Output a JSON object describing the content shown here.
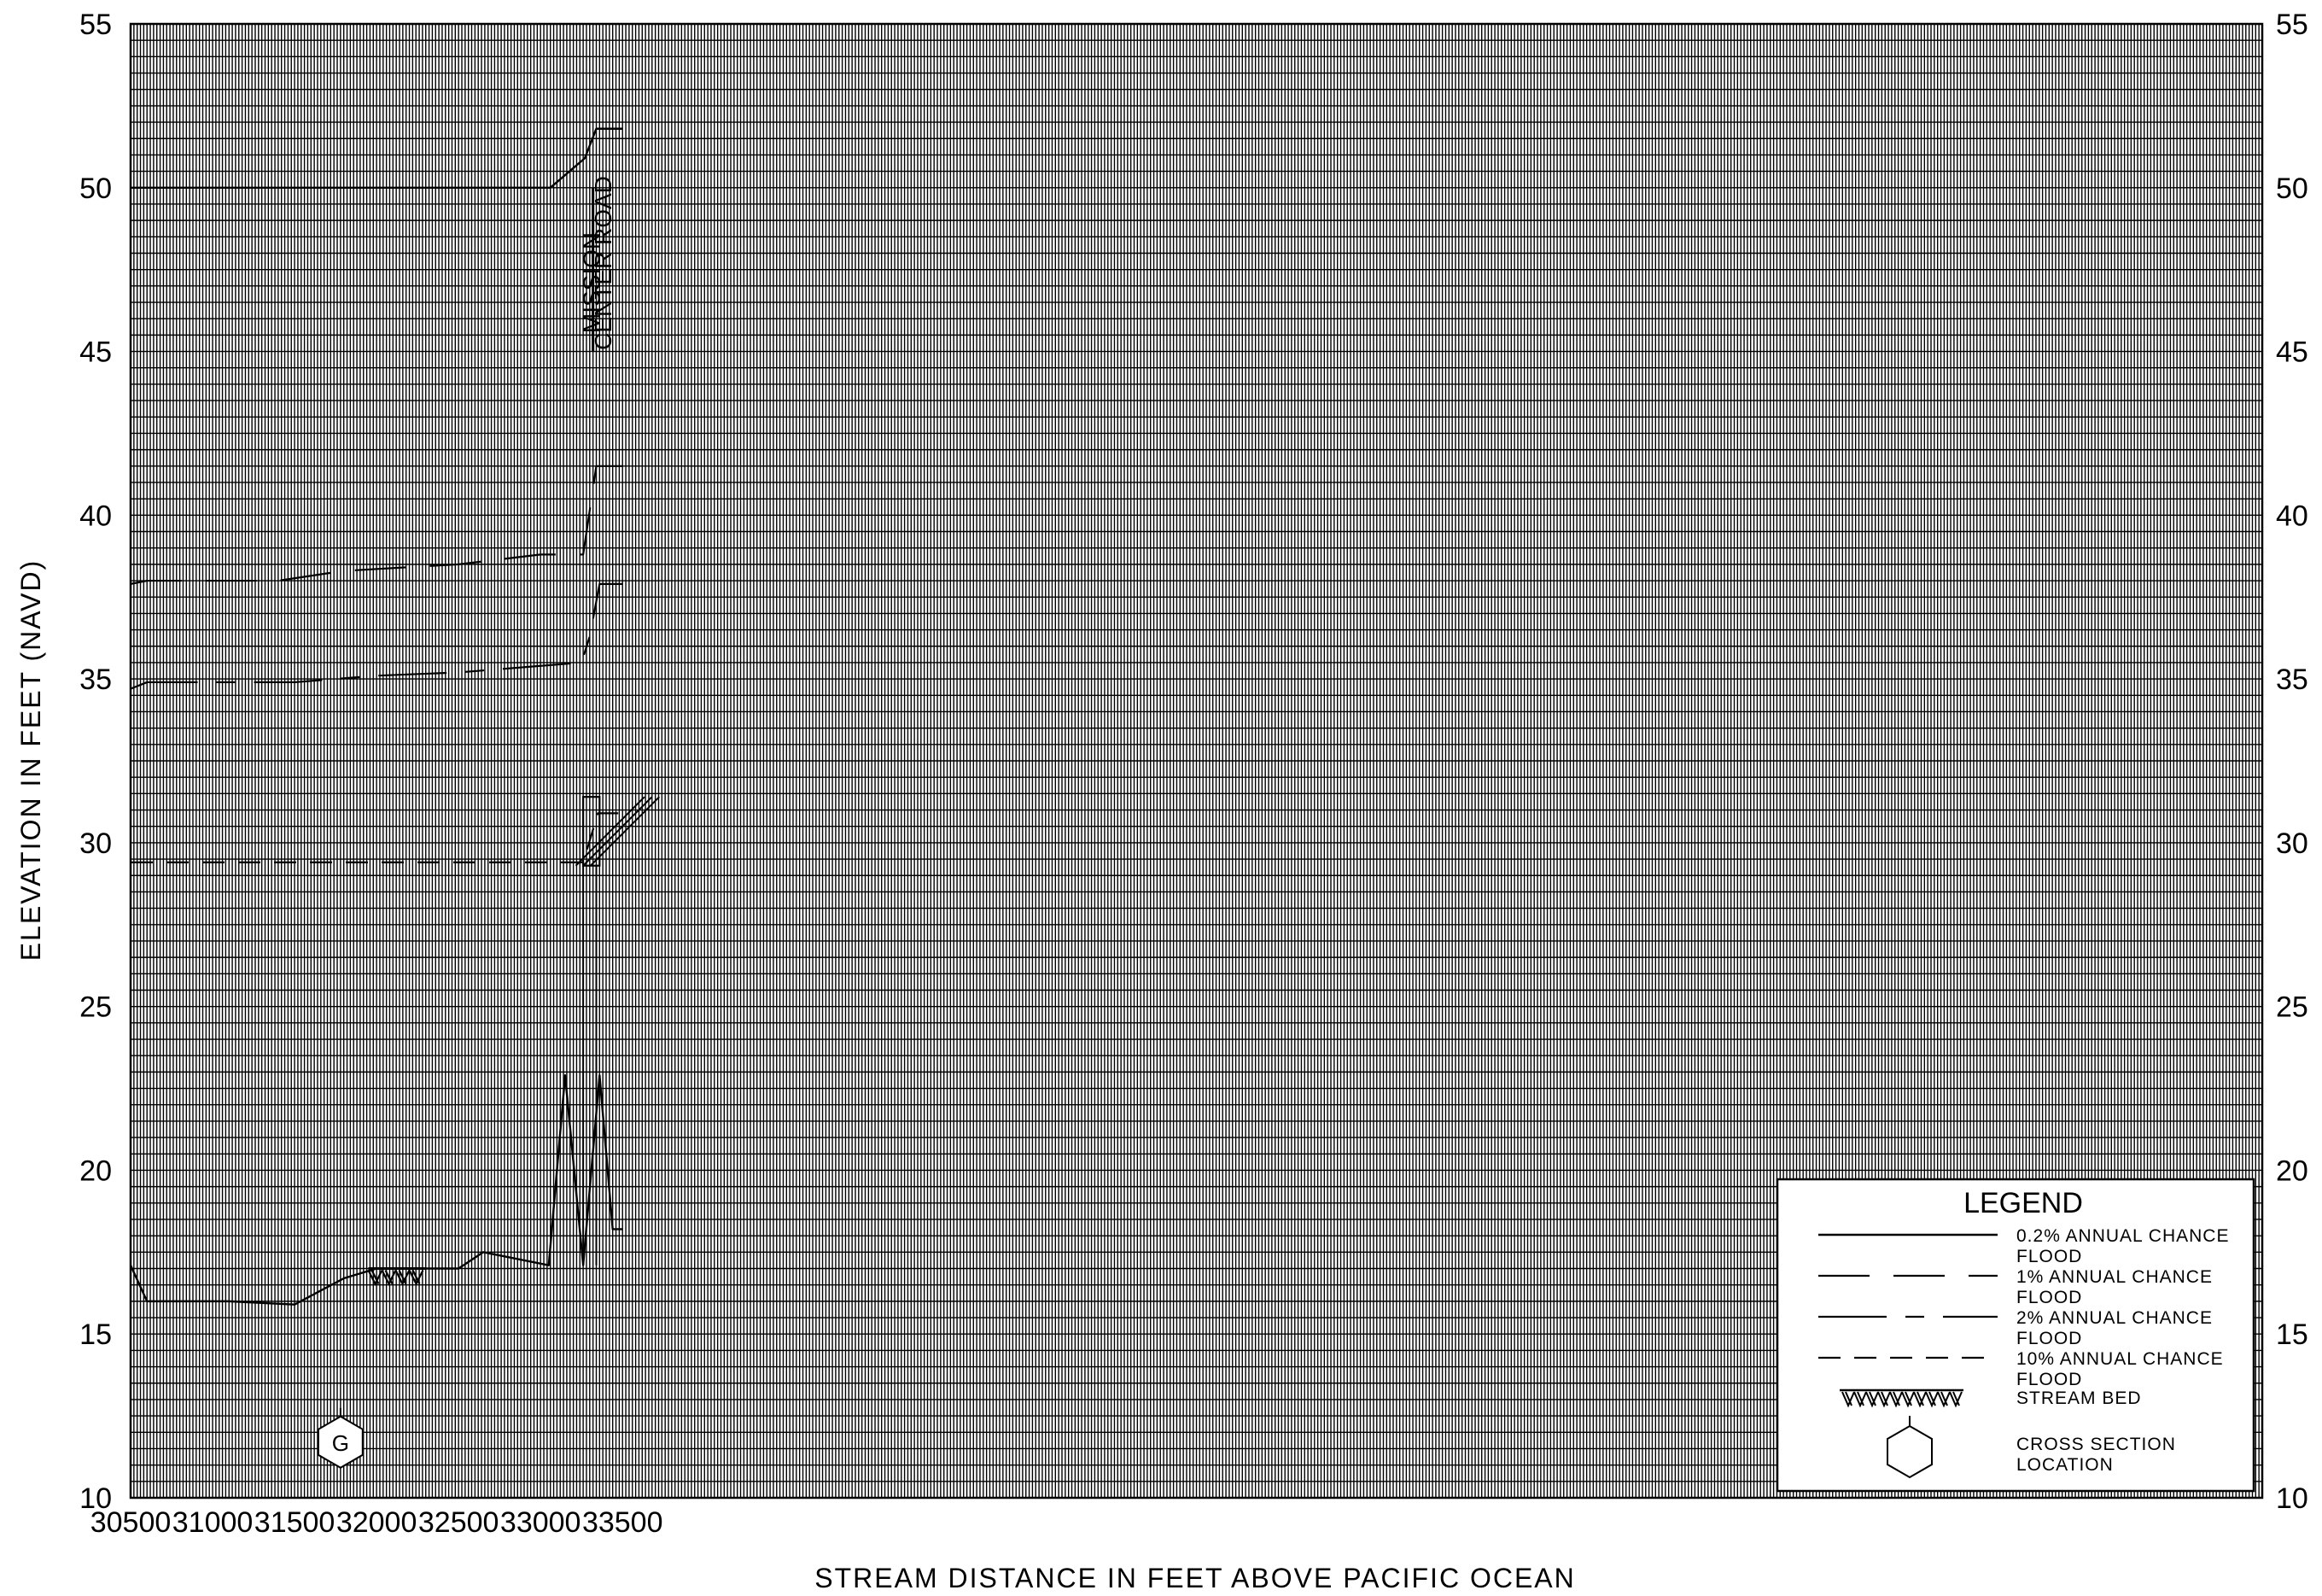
{
  "chart_data": {
    "type": "line",
    "xlabel": "STREAM DISTANCE IN FEET ABOVE PACIFIC OCEAN",
    "ylabel": "ELEVATION IN FEET (NAVD)",
    "xlim": [
      30500,
      43500
    ],
    "ylim": [
      10,
      55
    ],
    "x_ticks": [
      "30500",
      "31000",
      "31500",
      "32000",
      "32500",
      "33000",
      "33500"
    ],
    "y_ticks": [
      "10",
      "15",
      "20",
      "25",
      "30",
      "35",
      "40",
      "45",
      "50",
      "55"
    ],
    "grid": true,
    "legend": {
      "title": "LEGEND",
      "position": "bottom-right",
      "items": [
        {
          "label": [
            "0.2% ANNUAL CHANCE",
            "FLOOD"
          ],
          "style": "solid"
        },
        {
          "label": [
            "1% ANNUAL CHANCE",
            "FLOOD"
          ],
          "style": "long-dash"
        },
        {
          "label": [
            "2% ANNUAL CHANCE",
            "FLOOD"
          ],
          "style": "dash-dot"
        },
        {
          "label": [
            "10% ANNUAL CHANCE",
            "FLOOD"
          ],
          "style": "short-dash"
        },
        {
          "label": [
            "STREAM BED"
          ],
          "style": "hatched"
        },
        {
          "label": [
            "CROSS SECTION",
            "LOCATION"
          ],
          "style": "hexagon"
        }
      ]
    },
    "series": [
      {
        "style": "solid",
        "x": [
          30500,
          33060,
          33270,
          33340,
          33500
        ],
        "y": [
          50.0,
          50.0,
          50.9,
          51.8,
          51.8
        ]
      },
      {
        "style": "long-dash",
        "x": [
          30500,
          30600,
          31400,
          31800,
          32500,
          33000,
          33260,
          33340,
          33500
        ],
        "y": [
          37.9,
          38.0,
          38.0,
          38.3,
          38.5,
          38.8,
          38.8,
          41.5,
          41.5
        ]
      },
      {
        "style": "dash-dot",
        "x": [
          30500,
          30600,
          31500,
          32000,
          32500,
          33000,
          33250,
          33300,
          33360,
          33500
        ],
        "y": [
          34.7,
          34.9,
          34.9,
          35.1,
          35.2,
          35.4,
          35.5,
          36.3,
          37.9,
          37.9
        ]
      },
      {
        "style": "short-dash",
        "x": [
          30500,
          33260,
          33350,
          33500
        ],
        "y": [
          29.4,
          29.4,
          30.9,
          30.9
        ]
      },
      {
        "style": "bed",
        "x": [
          30500,
          30600,
          31100,
          31500,
          31800,
          32000,
          32500,
          32650,
          33050,
          33150,
          33260,
          33360,
          33440,
          33500
        ],
        "y": [
          17.1,
          16.0,
          16.0,
          15.9,
          16.7,
          17.0,
          17.0,
          17.5,
          17.1,
          22.9,
          17.1,
          22.9,
          18.2,
          18.2
        ]
      }
    ],
    "stream_bed_hatch": {
      "x": [
        31950,
        32300
      ],
      "y": 17.0
    },
    "structure_box": {
      "x": [
        33260,
        33360
      ],
      "y": [
        29.3,
        31.4
      ]
    },
    "structure_opening": {
      "x": [
        33260,
        33340
      ],
      "y": [
        17.1,
        29.3
      ]
    },
    "road_marker": {
      "x": 33320,
      "y": [
        45.0,
        50.0
      ]
    },
    "annotations": [
      {
        "text": "MISSION",
        "x": 33360,
        "y": 47.1
      },
      {
        "text": "CENTER ROAD",
        "x": 33430,
        "y": 47.7
      }
    ],
    "cross_sections": [
      {
        "label": "G",
        "x": 31780,
        "y": 11.7
      }
    ]
  }
}
